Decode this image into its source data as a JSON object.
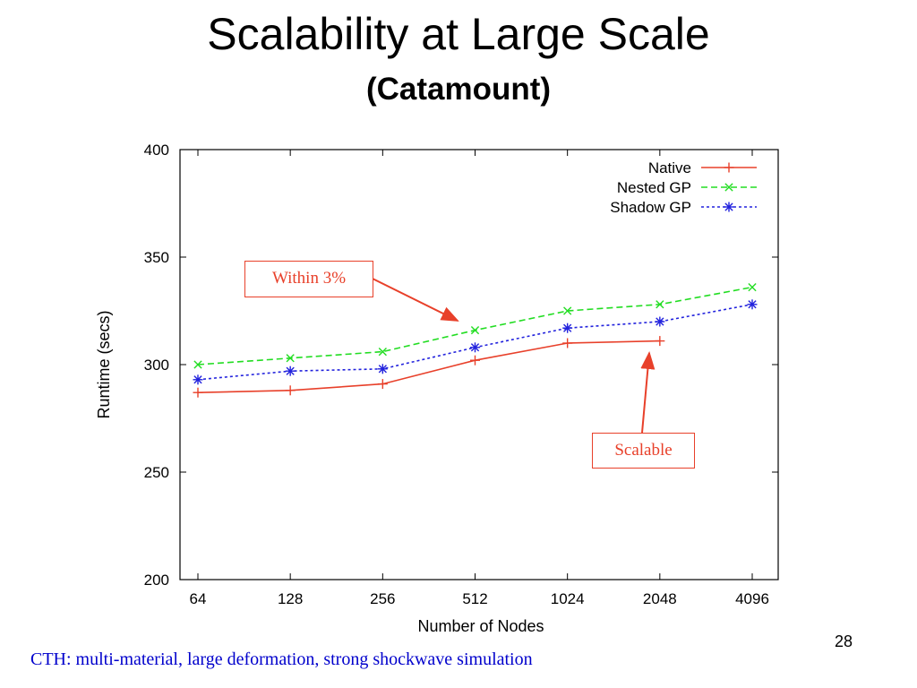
{
  "slide": {
    "title": "Scalability at Large Scale",
    "subtitle": "(Catamount)",
    "page_number": "28",
    "footer": "CTH: multi-material, large deformation, strong shockwave simulation"
  },
  "annotations": {
    "within": "Within 3%",
    "scalable": "Scalable"
  },
  "colors": {
    "native": "#e8402a",
    "nested": "#22dd22",
    "shadow": "#2222dd",
    "callout": "#e8402a",
    "footer": "#0000cc"
  },
  "chart_data": {
    "type": "line",
    "title": "",
    "xlabel": "Number of Nodes",
    "ylabel": "Runtime (secs)",
    "categories": [
      "64",
      "128",
      "256",
      "512",
      "1024",
      "2048",
      "4096"
    ],
    "ylim": [
      200,
      400
    ],
    "yticks": [
      200,
      250,
      300,
      350,
      400
    ],
    "grid": false,
    "legend_position": "top-right",
    "series": [
      {
        "name": "Native",
        "color": "#e8402a",
        "marker": "plus",
        "dash": "solid",
        "values": [
          287,
          288,
          291,
          302,
          310,
          311,
          null
        ]
      },
      {
        "name": "Nested GP",
        "color": "#22dd22",
        "marker": "x",
        "dash": "dashed",
        "values": [
          300,
          303,
          306,
          316,
          325,
          328,
          336
        ]
      },
      {
        "name": "Shadow GP",
        "color": "#2222dd",
        "marker": "star",
        "dash": "dotted",
        "values": [
          293,
          297,
          298,
          308,
          317,
          320,
          328
        ]
      }
    ]
  }
}
